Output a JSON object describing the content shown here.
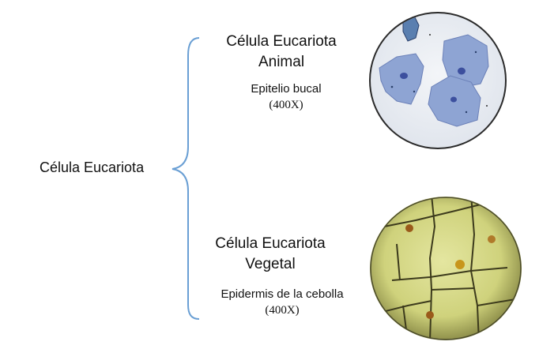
{
  "root": {
    "label": "Célula Eucariota"
  },
  "branches": [
    {
      "title_line1": "Célula Eucariota",
      "title_line2": "Animal",
      "sample": "Epitelio bucal",
      "magnification": "(400X)"
    },
    {
      "title_line1": "Célula Eucariota",
      "title_line2": "Vegetal",
      "sample": "Epidermis de la cebolla",
      "magnification": "(400X)"
    }
  ],
  "colors": {
    "brace": "#6a9fd4",
    "animal_field": "#eaeef3",
    "animal_cell": "#8ea4d3",
    "animal_nucleus": "#3c4f9e",
    "plant_field": "#d7d98a",
    "plant_wall": "#3c3a1c",
    "plant_nucleus": "#9a5a1a"
  }
}
